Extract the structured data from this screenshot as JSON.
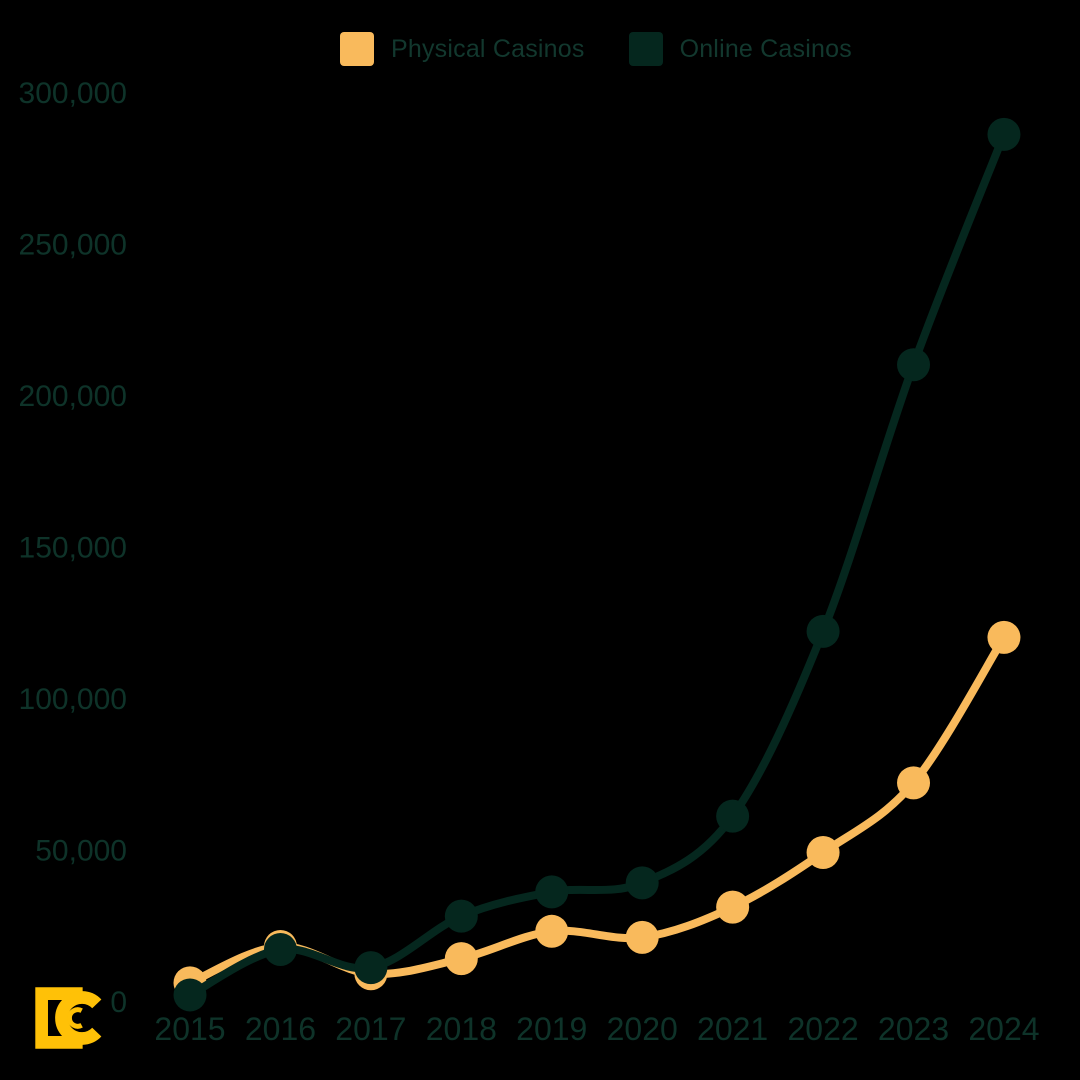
{
  "background_color": "#000000",
  "legend": {
    "items": [
      {
        "label": "Physical Casinos",
        "color": "#F9BA5C"
      },
      {
        "label": "Online Casinos",
        "color": "#05271E"
      }
    ],
    "text_color": "#12382E"
  },
  "chart_data": {
    "type": "line",
    "title": "",
    "xlabel": "",
    "ylabel": "",
    "x": [
      2015,
      2016,
      2017,
      2018,
      2019,
      2020,
      2021,
      2022,
      2023,
      2024
    ],
    "series": [
      {
        "name": "Physical Casinos",
        "color": "#F9BA5C",
        "values": [
          6000,
          18000,
          9000,
          14000,
          23000,
          21000,
          31000,
          49000,
          72000,
          120000
        ]
      },
      {
        "name": "Online Casinos",
        "color": "#05271E",
        "values": [
          2000,
          17000,
          11000,
          28000,
          36000,
          39000,
          61000,
          122000,
          210000,
          286000
        ]
      }
    ],
    "y_ticks": [
      0,
      50000,
      100000,
      150000,
      200000,
      250000,
      300000
    ],
    "ylim": [
      0,
      300000
    ],
    "grid": false,
    "legend_position": "top",
    "curve": "smooth",
    "markers": "circle",
    "axis_tick_color": "#0E3329"
  },
  "logo": {
    "monogram": "DC",
    "color": "#FFC107"
  }
}
